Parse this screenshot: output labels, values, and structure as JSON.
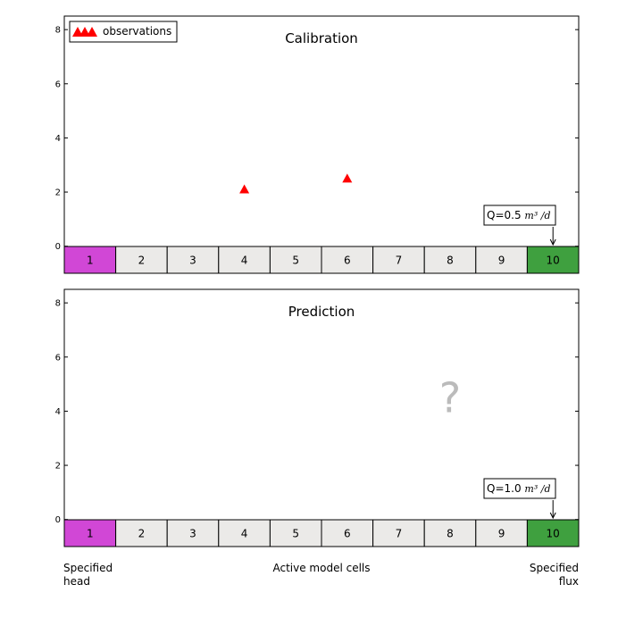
{
  "colors": {
    "observation_marker": "#ff0000",
    "head_cell": "#d147d6",
    "flux_cell": "#3fa03f",
    "active_cell": "#ebeae8",
    "question_mark": "#bbbbbb"
  },
  "legend": {
    "label": "observations",
    "placement": "top-left"
  },
  "chart_data": [
    {
      "type": "scatter",
      "title": "Calibration",
      "ylim": [
        -1,
        8.5
      ],
      "yticks": [
        0,
        2,
        4,
        6,
        8
      ],
      "ytick_labels": [
        "0",
        "2",
        "4",
        "6",
        "8"
      ],
      "cells": [
        "1",
        "2",
        "3",
        "4",
        "5",
        "6",
        "7",
        "8",
        "9",
        "10"
      ],
      "head_cell_index": 0,
      "flux_cell_index": 9,
      "series": [
        {
          "name": "observations",
          "x": [
            4,
            6
          ],
          "y": [
            2.1,
            2.5
          ]
        }
      ],
      "flux_annotation": {
        "text": "Q=0.5",
        "unit": "m³ /d",
        "cell": 10
      }
    },
    {
      "type": "scatter",
      "title": "Prediction",
      "ylim": [
        -1,
        8.5
      ],
      "yticks": [
        0,
        2,
        4,
        6,
        8
      ],
      "ytick_labels": [
        "0",
        "2",
        "4",
        "6",
        "8"
      ],
      "cells": [
        "1",
        "2",
        "3",
        "4",
        "5",
        "6",
        "7",
        "8",
        "9",
        "10"
      ],
      "head_cell_index": 0,
      "flux_cell_index": 9,
      "series": [],
      "annotation": {
        "text": "?",
        "cell": 8,
        "y": 4.5
      },
      "flux_annotation": {
        "text": "Q=1.0",
        "unit": "m³ /d",
        "cell": 10
      }
    }
  ],
  "bottom_labels": {
    "left_line1": "Specified",
    "left_line2": "head",
    "center": "Active model cells",
    "right_line1": "Specified",
    "right_line2": "flux"
  }
}
